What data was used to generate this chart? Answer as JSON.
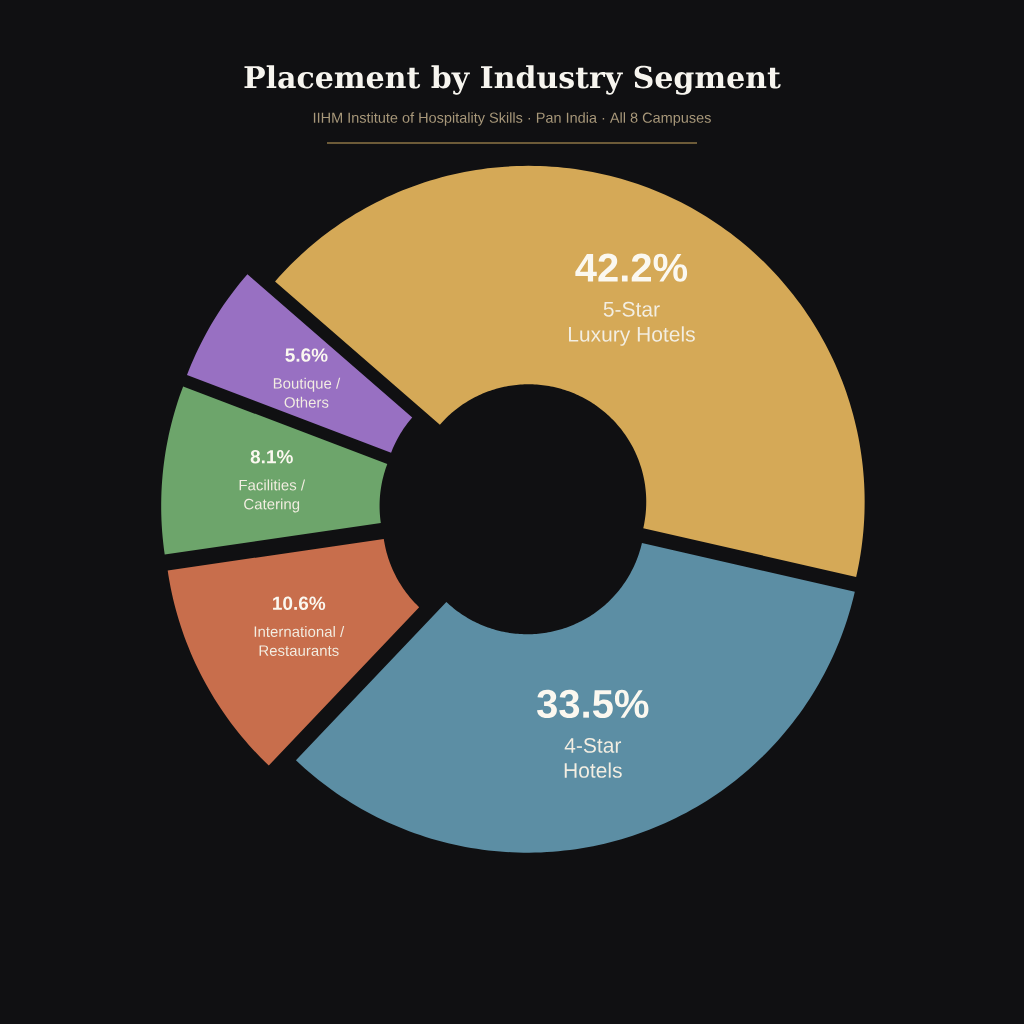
{
  "chart_data": {
    "type": "donut",
    "title": "Placement by Industry Segment",
    "subtitle": "IIHM Institute of Hospitality Skills · Pan India · All 8 Campuses",
    "categories": [
      "5-Star Luxury Hotels",
      "4-Star Hotels",
      "International / Restaurants",
      "Facilities / Catering",
      "Boutique / Others"
    ],
    "values": [
      42.2,
      33.5,
      10.6,
      8.1,
      5.6
    ],
    "value_labels": [
      "42.2%",
      "33.5%",
      "10.6%",
      "8.1%",
      "5.6%"
    ],
    "colors": [
      "#d5a957",
      "#5c8ea4",
      "#c86e4c",
      "#6da56b",
      "#9870c2"
    ]
  }
}
